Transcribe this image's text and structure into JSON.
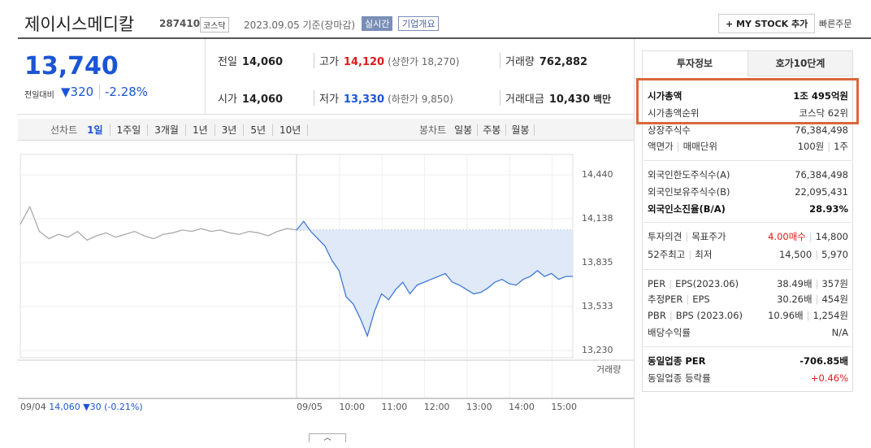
{
  "header": {
    "name": "제이시스메디칼",
    "code": "287410",
    "market": "코스닥",
    "date": "2023.09.05 기준(장마감)",
    "realtime": "실시간",
    "company": "기업개요",
    "mystock": "+ MY STOCK 추가",
    "quick_order": "빠른주문"
  },
  "quote": {
    "price": "13,740",
    "change_label": "전일대비",
    "change": "▼320",
    "rate": "-2.28%",
    "stats": [
      {
        "label": "전일",
        "value": "14,060"
      },
      {
        "label": "고가",
        "value": "14,120",
        "note": "(상한가 18,270)"
      },
      {
        "label": "거래량",
        "value": "762,882"
      },
      {
        "label": "시가",
        "value": "14,060"
      },
      {
        "label": "저가",
        "value": "13,330",
        "note": "(하한가 9,850)"
      },
      {
        "label": "거래대금",
        "value": "10,430",
        "unit": "백만"
      }
    ]
  },
  "chart_tabs": {
    "line_label": "선차트",
    "line_periods": [
      "1일",
      "1주일",
      "3개월",
      "1년",
      "3년",
      "5년",
      "10년"
    ],
    "candle_label": "봉차트",
    "candle_periods": [
      "일봉",
      "주봉",
      "월봉"
    ]
  },
  "chart_data": {
    "type": "line",
    "ylim": [
      13180,
      14580
    ],
    "yticks": [
      {
        "value": 14440,
        "label": "14,440"
      },
      {
        "value": 14138,
        "label": "14,138"
      },
      {
        "value": 13835,
        "label": "13,835"
      },
      {
        "value": 13533,
        "label": "13,533"
      },
      {
        "value": 13230,
        "label": "13,230"
      }
    ],
    "reference_line": 14060,
    "series": [
      {
        "color": "#aaaaaa",
        "values": [
          14100,
          14220,
          14050,
          14000,
          14030,
          14010,
          14050,
          13990,
          14020,
          14040,
          14010,
          14030,
          14050,
          14020,
          14000,
          14030,
          14040,
          14060,
          14050,
          14070,
          14050,
          14060,
          14040,
          14030,
          14050,
          14040,
          14020,
          14050,
          14070,
          14060
        ]
      },
      {
        "color": "#3f78d8",
        "fill": "#dfe9f8",
        "values": [
          14060,
          14120,
          14050,
          14000,
          13950,
          13850,
          13780,
          13600,
          13550,
          13450,
          13330,
          13500,
          13620,
          13580,
          13650,
          13700,
          13620,
          13680,
          13700,
          13720,
          13740,
          13760,
          13700,
          13680,
          13650,
          13620,
          13630,
          13660,
          13700,
          13720,
          13690,
          13680,
          13720,
          13740,
          13780,
          13740,
          13760,
          13720,
          13740,
          13740
        ]
      }
    ],
    "volume_label": "거래량",
    "x_labels": [
      "09/05",
      "10:00",
      "11:00",
      "12:00",
      "13:00",
      "14:00",
      "15:00"
    ],
    "prev_day": {
      "date": "09/04",
      "price": "14,060",
      "change": "▼30",
      "rate": "(-0.21%)"
    }
  },
  "invest": {
    "tabs": [
      "투자정보",
      "호가10단계"
    ],
    "sections": [
      [
        {
          "label": [
            "시가총액"
          ],
          "value": [
            "1조 495억원"
          ]
        },
        {
          "label": [
            "시가총액순위"
          ],
          "value": [
            "코스닥 62위"
          ]
        },
        {
          "label": [
            "상장주식수"
          ],
          "value": [
            "76,384,498"
          ]
        },
        {
          "label": [
            "액면가",
            "매매단위"
          ],
          "value": [
            "100원",
            "1주"
          ]
        }
      ],
      [
        {
          "label": [
            "외국인한도주식수(A)"
          ],
          "value": [
            "76,384,498"
          ]
        },
        {
          "label": [
            "외국인보유주식수(B)"
          ],
          "value": [
            "22,095,431"
          ]
        },
        {
          "label": [
            "외국인소진율(B/A)"
          ],
          "value": [
            "28.93%"
          ]
        }
      ],
      [
        {
          "label": [
            "투자의견",
            "목표주가"
          ],
          "value": [
            "4.00매수",
            "14,800"
          ]
        },
        {
          "label": [
            "52주최고",
            "최저"
          ],
          "value": [
            "14,500",
            "5,970"
          ]
        }
      ],
      [
        {
          "label": [
            "PER",
            "EPS(2023.06)"
          ],
          "value": [
            "38.49배",
            "357원"
          ]
        },
        {
          "label": [
            "추정PER",
            "EPS"
          ],
          "value": [
            "30.26배",
            "454원"
          ]
        },
        {
          "label": [
            "PBR",
            "BPS (2023.06)"
          ],
          "value": [
            "10.96배",
            "1,254원"
          ]
        },
        {
          "label": [
            "배당수익률"
          ],
          "value": [
            "N/A"
          ]
        }
      ],
      [
        {
          "label": [
            "동일업종 PER"
          ],
          "value": [
            "-706.85배"
          ]
        },
        {
          "label": [
            "동일업종 등락률"
          ],
          "value": [
            "+0.46%"
          ]
        }
      ]
    ]
  }
}
